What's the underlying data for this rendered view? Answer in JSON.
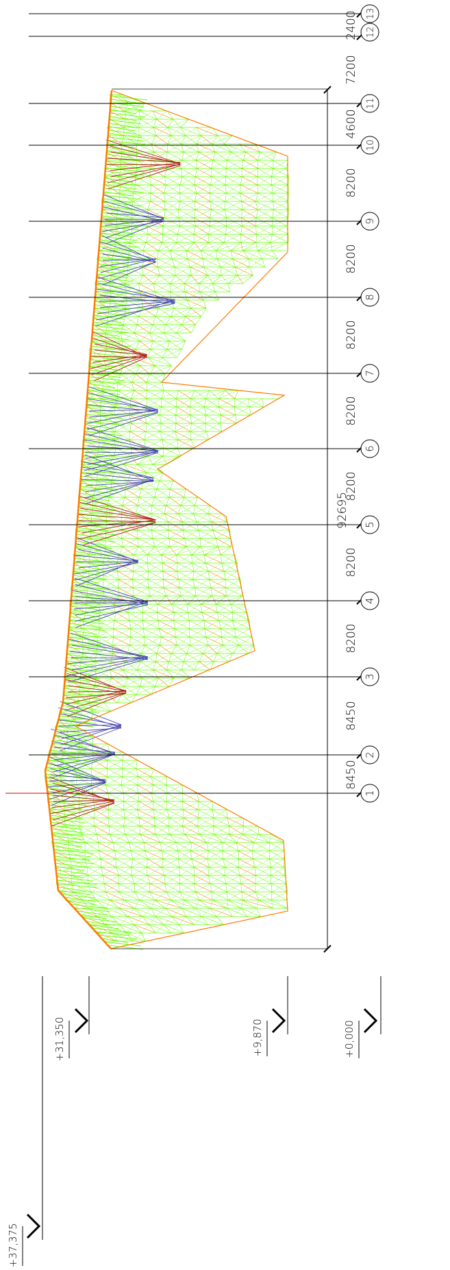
{
  "grid_axes": [
    "1",
    "2",
    "3",
    "4",
    "5",
    "6",
    "7",
    "8",
    "9",
    "10",
    "11",
    "12",
    "13"
  ],
  "spacings": [
    "8450",
    "8450",
    "8200",
    "8200",
    "8200",
    "8200",
    "8200",
    "8200",
    "8200",
    "4600",
    "7200",
    "2400"
  ],
  "total_length": "92695",
  "levels": [
    "+37,375",
    "+31,350",
    "+9,870",
    "+0,000"
  ],
  "colors": {
    "mesh_green": "#66ff00",
    "edge_orange": "#ff7a00",
    "brace_blue": "#4545b0",
    "brace_red": "#b01818",
    "line_black": "#000000"
  }
}
